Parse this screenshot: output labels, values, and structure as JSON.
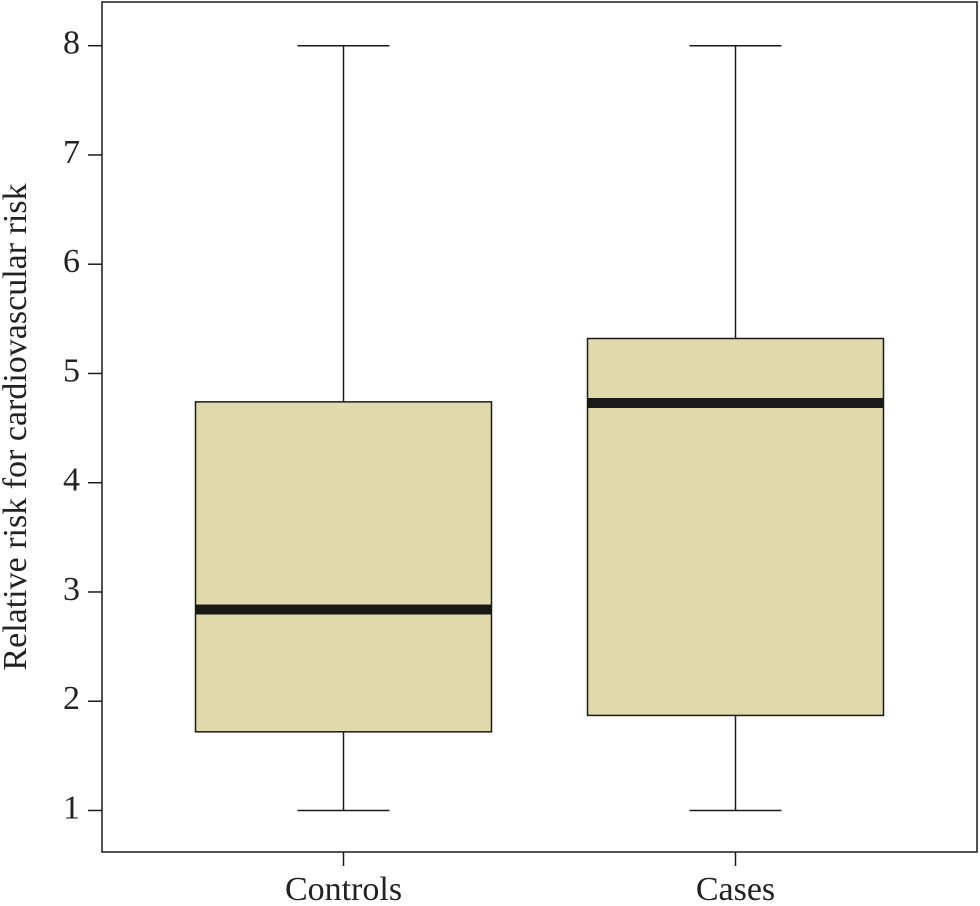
{
  "chart_data": {
    "type": "box",
    "ylabel": "Relative risk for cardiovascular risk",
    "categories": [
      "Controls",
      "Cases"
    ],
    "boxes": [
      {
        "min": 1,
        "q1": 1.72,
        "median": 2.84,
        "q3": 4.74,
        "max": 8
      },
      {
        "min": 1,
        "q1": 1.87,
        "median": 4.73,
        "q3": 5.32,
        "max": 8
      }
    ],
    "color": "#e0d9ab",
    "ylim": [
      0.62,
      8.4
    ],
    "yticks": [
      1,
      2,
      3,
      4,
      5,
      6,
      7,
      8
    ],
    "grid": false
  }
}
